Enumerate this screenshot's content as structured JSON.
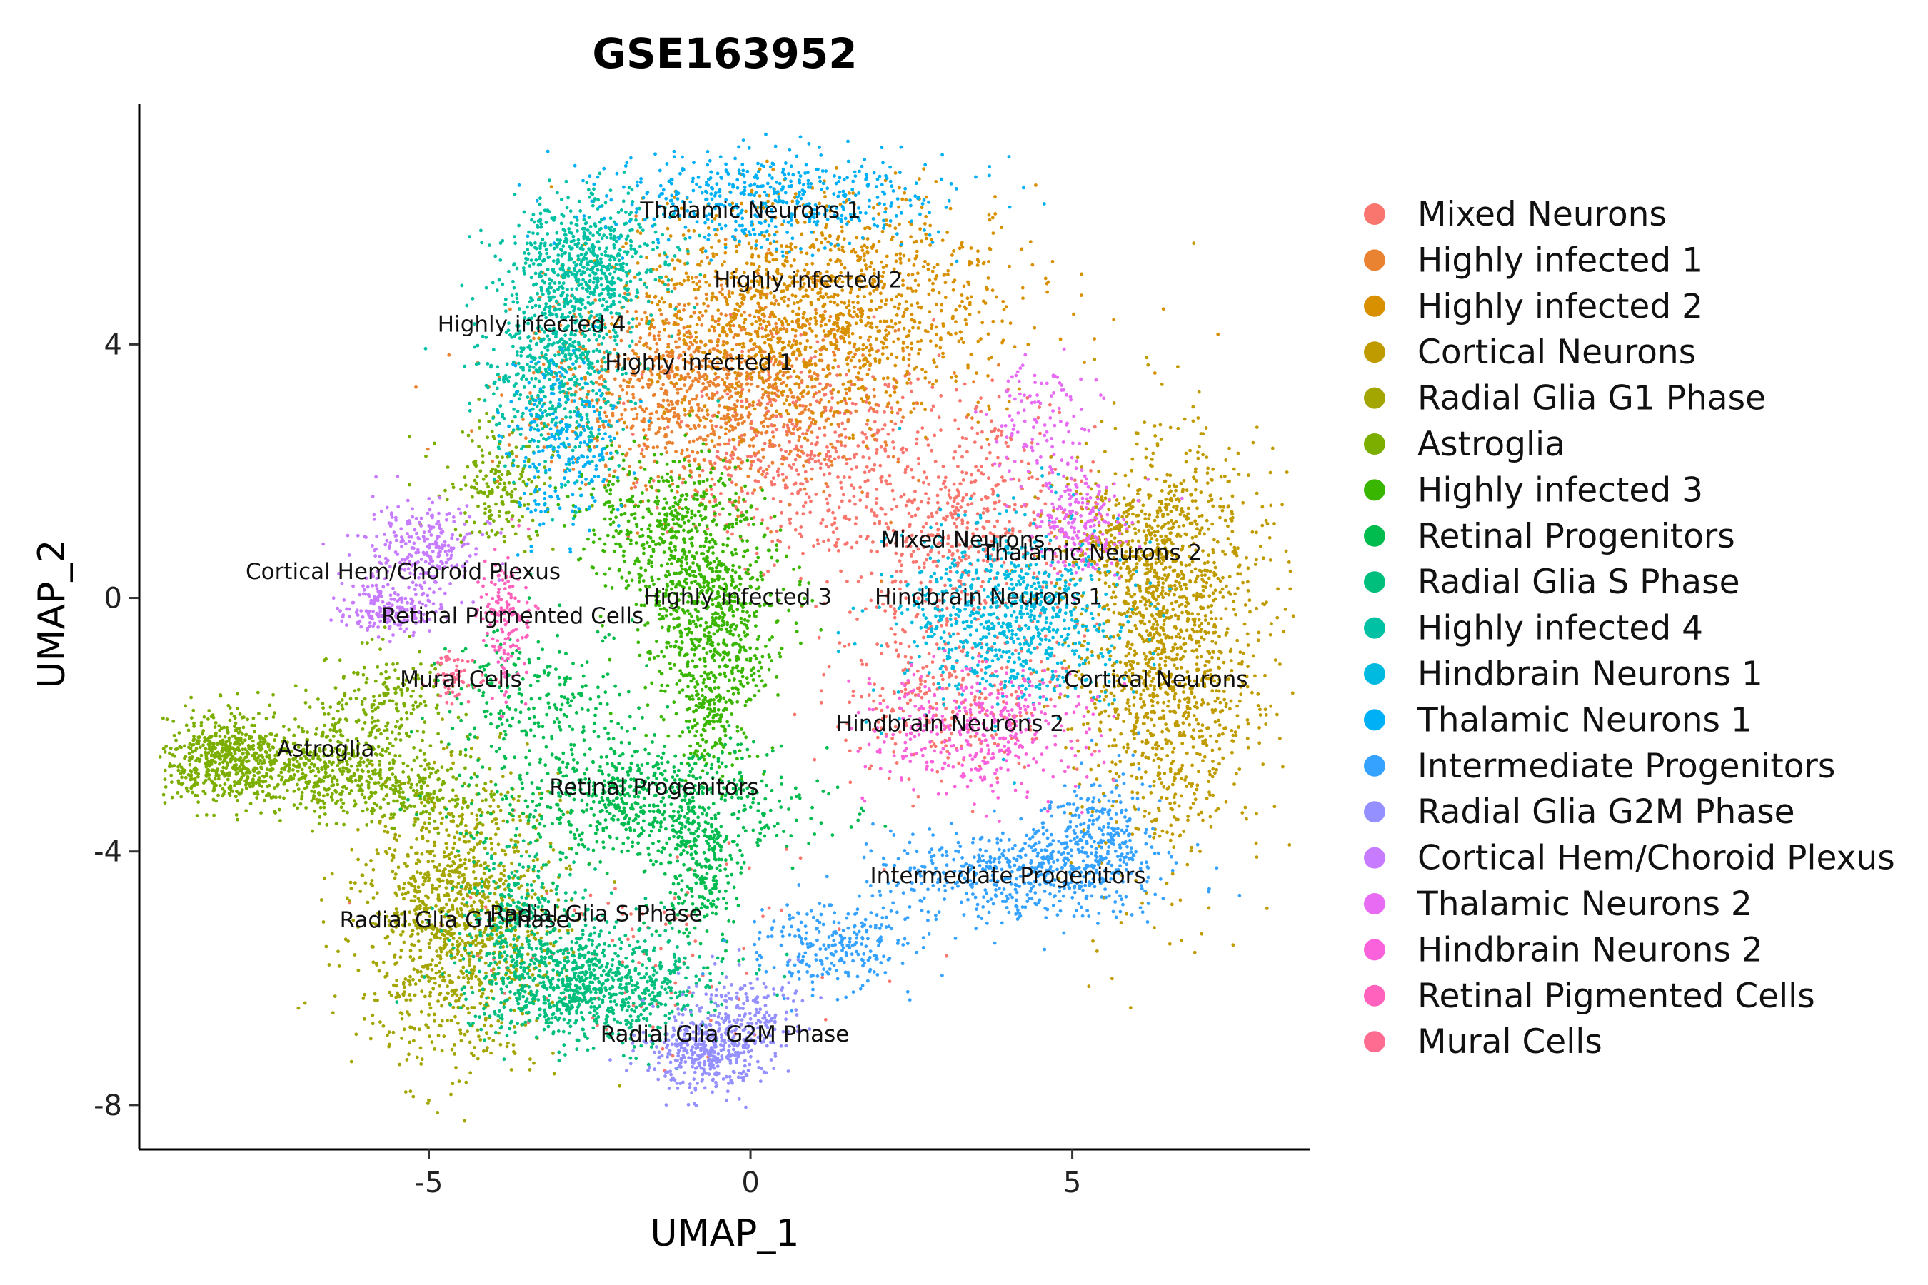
{
  "chart_data": {
    "type": "scatter",
    "title": "GSE163952",
    "xlabel": "UMAP_1",
    "ylabel": "UMAP_2",
    "xlim": [
      -9.5,
      8.7
    ],
    "ylim": [
      -8.7,
      7.8
    ],
    "xticks": [
      {
        "value": -5,
        "label": "-5"
      },
      {
        "value": 0,
        "label": "0"
      },
      {
        "value": 5,
        "label": "5"
      }
    ],
    "yticks": [
      {
        "value": 4,
        "label": "4"
      },
      {
        "value": 0,
        "label": "0"
      },
      {
        "value": -4,
        "label": "-4"
      },
      {
        "value": -8,
        "label": "-8"
      }
    ],
    "grid": false,
    "legend_position": "right",
    "series": [
      {
        "name": "Mixed Neurons",
        "color": "#F8766D",
        "label_pos": [
          3.3,
          0.8
        ],
        "blobs": [
          {
            "c": [
              0.8,
              2.2
            ],
            "s": [
              1.1,
              0.9
            ],
            "n": 500
          },
          {
            "c": [
              3.3,
              1.2
            ],
            "s": [
              0.9,
              0.9
            ],
            "n": 500
          },
          {
            "c": [
              3.0,
              -1.5
            ],
            "s": [
              0.9,
              0.7
            ],
            "n": 300
          },
          {
            "c": [
              -1.5,
              -5.5
            ],
            "s": [
              1.5,
              0.8
            ],
            "n": 100
          }
        ]
      },
      {
        "name": "Highly infected 1",
        "color": "#EA8331",
        "label_pos": [
          -0.8,
          3.6
        ],
        "blobs": [
          {
            "c": [
              -0.8,
              3.3
            ],
            "s": [
              1.3,
              0.8
            ],
            "n": 1100
          }
        ]
      },
      {
        "name": "Highly infected 2",
        "color": "#D89000",
        "label_pos": [
          0.9,
          4.9
        ],
        "blobs": [
          {
            "c": [
              1.0,
              4.6
            ],
            "s": [
              1.5,
              0.9
            ],
            "n": 1400
          }
        ]
      },
      {
        "name": "Cortical Neurons",
        "color": "#C09B00",
        "label_pos": [
          6.3,
          -1.4
        ],
        "blobs": [
          {
            "c": [
              6.5,
              -0.8
            ],
            "s": [
              0.75,
              1.6
            ],
            "n": 1400
          },
          {
            "c": [
              6.0,
              0.8
            ],
            "s": [
              0.6,
              0.6
            ],
            "n": 300
          }
        ]
      },
      {
        "name": "Radial Glia G1 Phase",
        "color": "#A3A500",
        "label_pos": [
          -4.6,
          -5.2
        ],
        "blobs": [
          {
            "c": [
              -4.6,
              -5.1
            ],
            "s": [
              0.75,
              1.1
            ],
            "n": 1200
          }
        ]
      },
      {
        "name": "Astroglia",
        "color": "#7CAE00",
        "label_pos": [
          -6.6,
          -2.5
        ],
        "blobs": [
          {
            "c": [
              -8.2,
              -2.5
            ],
            "s": [
              0.45,
              0.35
            ],
            "n": 500
          },
          {
            "c": [
              -6.8,
              -2.7
            ],
            "s": [
              0.8,
              0.35
            ],
            "n": 500
          },
          {
            "c": [
              -5.7,
              -1.6
            ],
            "s": [
              0.5,
              0.4
            ],
            "n": 200
          },
          {
            "c": [
              -3.9,
              1.8
            ],
            "s": [
              0.4,
              0.5
            ],
            "n": 200
          },
          {
            "c": [
              -5.3,
              -3.0
            ],
            "s": [
              0.6,
              0.3
            ],
            "n": 200
          }
        ]
      },
      {
        "name": "Highly infected 3",
        "color": "#39B600",
        "label_pos": [
          -0.2,
          -0.1
        ],
        "blobs": [
          {
            "c": [
              -0.6,
              -0.3
            ],
            "s": [
              0.55,
              0.8
            ],
            "n": 700
          },
          {
            "c": [
              -1.4,
              1.2
            ],
            "s": [
              0.7,
              0.6
            ],
            "n": 400
          },
          {
            "c": [
              -0.6,
              -2.0
            ],
            "s": [
              0.25,
              0.5
            ],
            "n": 150
          }
        ]
      },
      {
        "name": "Retinal Progenitors",
        "color": "#00BB4E",
        "label_pos": [
          -1.5,
          -3.1
        ],
        "blobs": [
          {
            "c": [
              -1.6,
              -3.2
            ],
            "s": [
              1.2,
              0.45
            ],
            "n": 700
          },
          {
            "c": [
              -0.8,
              -4.3
            ],
            "s": [
              0.3,
              0.5
            ],
            "n": 250
          },
          {
            "c": [
              -3.2,
              -1.7
            ],
            "s": [
              0.8,
              0.6
            ],
            "n": 250
          }
        ]
      },
      {
        "name": "Radial Glia S Phase",
        "color": "#00BF7D",
        "label_pos": [
          -2.4,
          -5.1
        ],
        "blobs": [
          {
            "c": [
              -2.5,
              -6.1
            ],
            "s": [
              0.9,
              0.45
            ],
            "n": 900
          },
          {
            "c": [
              -3.6,
              -5.0
            ],
            "s": [
              0.5,
              0.6
            ],
            "n": 300
          }
        ]
      },
      {
        "name": "Highly infected 4",
        "color": "#00C1A3",
        "label_pos": [
          -3.4,
          4.2
        ],
        "blobs": [
          {
            "c": [
              -3.0,
              3.8
            ],
            "s": [
              0.6,
              0.9
            ],
            "n": 700
          },
          {
            "c": [
              -2.5,
              5.4
            ],
            "s": [
              0.6,
              0.5
            ],
            "n": 500
          }
        ]
      },
      {
        "name": "Hindbrain Neurons 1",
        "color": "#00BAE0",
        "label_pos": [
          3.7,
          -0.1
        ],
        "blobs": [
          {
            "c": [
              4.0,
              -0.3
            ],
            "s": [
              0.9,
              0.75
            ],
            "n": 800
          }
        ]
      },
      {
        "name": "Thalamic Neurons 1",
        "color": "#00B0F6",
        "label_pos": [
          0.0,
          6.0
        ],
        "blobs": [
          {
            "c": [
              0.3,
              6.3
            ],
            "s": [
              1.3,
              0.35
            ],
            "n": 500
          },
          {
            "c": [
              -2.9,
              2.4
            ],
            "s": [
              0.45,
              0.7
            ],
            "n": 250
          }
        ]
      },
      {
        "name": "Intermediate Progenitors",
        "color": "#35A2FF",
        "label_pos": [
          4.0,
          -4.5
        ],
        "blobs": [
          {
            "c": [
              4.2,
              -4.3
            ],
            "s": [
              1.1,
              0.4
            ],
            "n": 500
          },
          {
            "c": [
              5.4,
              -3.8
            ],
            "s": [
              0.4,
              0.5
            ],
            "n": 250
          },
          {
            "c": [
              1.3,
              -5.5
            ],
            "s": [
              0.7,
              0.35
            ],
            "n": 250
          }
        ]
      },
      {
        "name": "Radial Glia G2M Phase",
        "color": "#9590FF",
        "label_pos": [
          -0.4,
          -7.0
        ],
        "blobs": [
          {
            "c": [
              -0.7,
              -7.2
            ],
            "s": [
              0.45,
              0.3
            ],
            "n": 350
          },
          {
            "c": [
              -0.1,
              -6.6
            ],
            "s": [
              0.5,
              0.35
            ],
            "n": 200
          }
        ]
      },
      {
        "name": "Cortical Hem/Choroid Plexus",
        "color": "#C77CFF",
        "label_pos": [
          -5.4,
          0.3
        ],
        "blobs": [
          {
            "c": [
              -5.6,
              -0.2
            ],
            "s": [
              0.4,
              0.25
            ],
            "n": 200
          },
          {
            "c": [
              -5.1,
              0.8
            ],
            "s": [
              0.45,
              0.35
            ],
            "n": 250
          }
        ]
      },
      {
        "name": "Thalamic Neurons 2",
        "color": "#E76BF3",
        "label_pos": [
          5.3,
          0.6
        ],
        "blobs": [
          {
            "c": [
              5.1,
              1.2
            ],
            "s": [
              0.35,
              0.4
            ],
            "n": 200
          },
          {
            "c": [
              4.5,
              2.7
            ],
            "s": [
              0.4,
              0.5
            ],
            "n": 120
          }
        ]
      },
      {
        "name": "Hindbrain Neurons 2",
        "color": "#FA62DB",
        "label_pos": [
          3.1,
          -2.1
        ],
        "blobs": [
          {
            "c": [
              3.5,
              -2.1
            ],
            "s": [
              0.85,
              0.5
            ],
            "n": 400
          }
        ]
      },
      {
        "name": "Retinal Pigmented Cells",
        "color": "#FF62BC",
        "label_pos": [
          -3.7,
          -0.4
        ],
        "blobs": [
          {
            "c": [
              -3.8,
              -0.4
            ],
            "s": [
              0.18,
              0.55
            ],
            "n": 150
          }
        ]
      },
      {
        "name": "Mural Cells",
        "color": "#FF6C91",
        "label_pos": [
          -4.5,
          -1.4
        ],
        "blobs": [
          {
            "c": [
              -4.6,
              -1.3
            ],
            "s": [
              0.25,
              0.2
            ],
            "n": 60
          }
        ]
      }
    ]
  }
}
